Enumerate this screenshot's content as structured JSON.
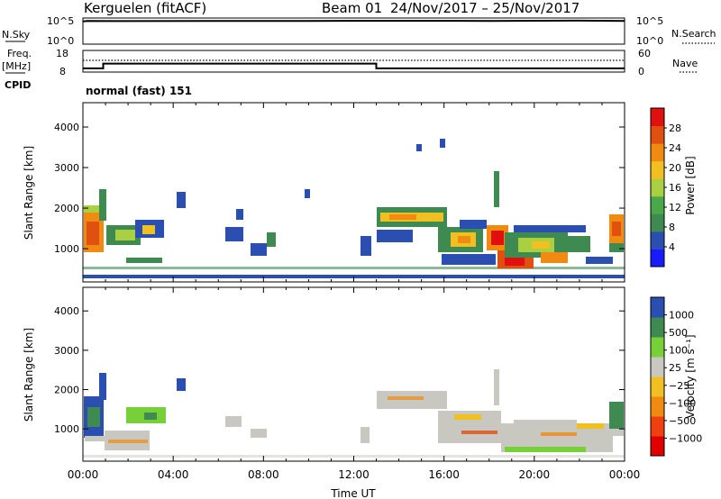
{
  "header": {
    "station": "Kerguelen (fitACF)",
    "beam": "Beam 01",
    "dates": "24/Nov/2017 – 25/Nov/2017"
  },
  "nsky_panel": {
    "left_label": "N.Sky",
    "right_label": "N.Search",
    "left_ticks": [
      "10^5",
      "10^0"
    ],
    "right_ticks": [
      "10^5",
      "10^0"
    ]
  },
  "freq_panel": {
    "left_label_1": "Freq.",
    "left_label_2": "[MHz]",
    "right_label": "Nave",
    "left_ticks": [
      "18",
      "8"
    ],
    "right_ticks": [
      "60",
      "0"
    ],
    "cpid_label": "CPID",
    "cpid_value": "normal (fast) 151"
  },
  "power_panel": {
    "ylabel": "Slant Range [km]",
    "yticks": [
      "4000",
      "3000",
      "2000",
      "1000"
    ],
    "colorbar_label": "Power [dB]",
    "colorbar_ticks": [
      "28",
      "24",
      "20",
      "16",
      "12",
      "8",
      "4"
    ]
  },
  "velocity_panel": {
    "ylabel": "Slant Range [km]",
    "yticks": [
      "4000",
      "3000",
      "2000",
      "1000"
    ],
    "colorbar_label": "Velocity [m s⁻¹]",
    "colorbar_ticks": [
      "1000",
      "500",
      "100",
      "25",
      "−25",
      "−100",
      "−500",
      "−1000"
    ]
  },
  "xaxis": {
    "xlabel": "Time UT",
    "ticks": [
      "00:00",
      "04:00",
      "08:00",
      "12:00",
      "16:00",
      "20:00",
      "00:00"
    ]
  },
  "colors": {
    "power_scale": [
      "#1a1aff",
      "#2b4fb0",
      "#3f8a50",
      "#4aa84a",
      "#a8d040",
      "#f0c020",
      "#f08a10",
      "#e05010",
      "#e01010"
    ],
    "velocity_scale": [
      "#e00000",
      "#f04010",
      "#f08a10",
      "#f0c020",
      "#c8c8c0",
      "#78d038",
      "#3f8a50",
      "#2b4fb0"
    ]
  },
  "chart_data": [
    {
      "type": "line",
      "title": "",
      "x_range_hours": [
        0,
        24
      ],
      "series": [
        {
          "values": [
            [
              0,
              4.5
            ],
            [
              0.2,
              4.6
            ],
            [
              2,
              4.55
            ],
            [
              6,
              4.6
            ],
            [
              10,
              4.6
            ],
            [
              14,
              4.62
            ],
            [
              18,
              4.6
            ],
            [
              22,
              4.65
            ],
            [
              24,
              4.6
            ]
          ]
        }
      ],
      "ylim_log10": [
        0,
        5
      ]
    },
    {
      "type": "line",
      "title": "",
      "x_range_hours": [
        0,
        24
      ],
      "series": [
        {
          "values": [
            [
              0,
              9.4
            ],
            [
              0.9,
              9.4
            ],
            [
              0.9,
              11.8
            ],
            [
              13.0,
              11.8
            ],
            [
              13.0,
              9.4
            ],
            [
              24,
              9.4
            ]
          ]
        }
      ],
      "ylim": [
        8,
        18
      ]
    },
    {
      "type": "heatmap",
      "title": "",
      "x_range_hours": [
        0,
        24
      ],
      "ylim": [
        180,
        4600
      ],
      "zlim": [
        0,
        30
      ],
      "grid": false,
      "legend": "colorbar-right"
    },
    {
      "type": "heatmap",
      "title": "",
      "x_range_hours": [
        0,
        24
      ],
      "ylim": [
        180,
        4600
      ],
      "zlim": [
        -1000,
        1000
      ],
      "grid": false,
      "legend": "colorbar-right"
    }
  ]
}
